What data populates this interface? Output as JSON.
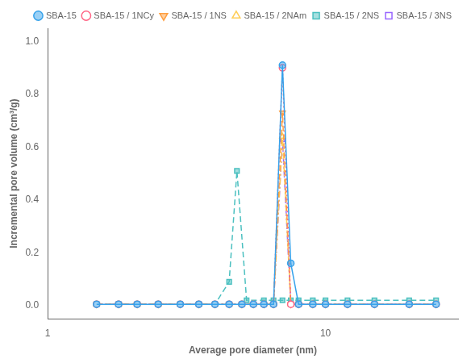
{
  "chart_data": {
    "type": "line",
    "x_label": "Average pore diameter (nm)",
    "y_label": "Incremental pore volume (cm³/g)",
    "log": "x",
    "xlim": [
      1,
      30
    ],
    "xticks": [
      1,
      10
    ],
    "ylim": [
      -0.05,
      1.05
    ],
    "yticks": [
      {
        "value": 0.0,
        "label": "0.0"
      },
      0.2,
      0.4,
      0.6,
      0.8,
      {
        "value": 1.0,
        "label": "1.0"
      }
    ],
    "grid": false,
    "legend": "upper right",
    "series": [
      {
        "name": "SBA-15",
        "line_style": "solid",
        "marker": "circle",
        "x": [
          1.5,
          1.8,
          2.1,
          2.5,
          3.0,
          3.5,
          4.0,
          4.5,
          5.0,
          5.5,
          6.0,
          6.5,
          7.0,
          7.5,
          8.0,
          9.0,
          10.0,
          12.0,
          15.0,
          20.0,
          25.0
        ],
        "values": [
          0.005,
          0.005,
          0.005,
          0.005,
          0.005,
          0.005,
          0.005,
          0.005,
          0.005,
          0.005,
          0.005,
          0.005,
          0.91,
          0.16,
          0.005,
          0.005,
          0.005,
          0.005,
          0.005,
          0.005,
          0.005
        ]
      },
      {
        "name": "SBA-15 / 1NCy",
        "line_style": "dotted",
        "marker": "circle-open",
        "x": [
          1.5,
          1.8,
          2.1,
          2.5,
          3.0,
          3.5,
          4.0,
          4.5,
          5.0,
          5.5,
          6.0,
          6.5,
          7.0,
          7.5,
          8.0,
          9.0,
          10.0,
          12.0,
          15.0,
          20.0,
          25.0
        ],
        "values": [
          0.005,
          0.005,
          0.005,
          0.005,
          0.005,
          0.005,
          0.005,
          0.005,
          0.005,
          0.005,
          0.005,
          0.005,
          0.9,
          0.005,
          0.005,
          0.005,
          0.005,
          0.005,
          0.005,
          0.005,
          0.005
        ]
      },
      {
        "name": "SBA-15 / 1NS",
        "line_style": "dashed",
        "marker": "triangle-down",
        "x": [
          1.5,
          1.8,
          2.1,
          2.5,
          3.0,
          3.5,
          4.0,
          4.5,
          5.0,
          5.5,
          6.0,
          6.5,
          7.0,
          7.5,
          8.0,
          9.0,
          10.0,
          12.0,
          15.0,
          20.0,
          25.0
        ],
        "values": [
          0.005,
          0.005,
          0.005,
          0.005,
          0.005,
          0.005,
          0.005,
          0.005,
          0.005,
          0.005,
          0.005,
          0.005,
          0.73,
          0.005,
          0.005,
          0.005,
          0.005,
          0.005,
          0.005,
          0.005,
          0.005
        ]
      },
      {
        "name": "SBA-15 / 2NAm",
        "line_style": "dashdot",
        "marker": "triangle-open",
        "x": [
          1.5,
          1.8,
          2.1,
          2.5,
          3.0,
          3.5,
          4.0,
          4.5,
          5.0,
          5.5,
          6.0,
          6.5,
          7.0,
          7.5,
          8.0,
          9.0,
          10.0,
          12.0,
          15.0,
          20.0,
          25.0
        ],
        "values": [
          0.005,
          0.005,
          0.005,
          0.005,
          0.005,
          0.005,
          0.005,
          0.005,
          0.005,
          0.005,
          0.005,
          0.005,
          0.64,
          0.005,
          0.005,
          0.005,
          0.005,
          0.005,
          0.005,
          0.005,
          0.005
        ]
      },
      {
        "name": "SBA-15 / 2NS",
        "line_style": "dashed",
        "marker": "square",
        "x": [
          1.5,
          1.8,
          2.1,
          2.5,
          3.0,
          3.5,
          4.0,
          4.5,
          4.8,
          5.2,
          6.0,
          6.5,
          7.0,
          7.5,
          8.0,
          9.0,
          10.0,
          12.0,
          15.0,
          20.0,
          25.0
        ],
        "values": [
          0.005,
          0.005,
          0.005,
          0.005,
          0.005,
          0.005,
          0.005,
          0.09,
          0.51,
          0.02,
          0.02,
          0.02,
          0.02,
          0.02,
          0.02,
          0.02,
          0.02,
          0.02,
          0.02,
          0.02,
          0.02
        ]
      },
      {
        "name": "SBA-15 / 3NS",
        "line_style": "dashdot",
        "marker": "square-open",
        "x": [
          1.5,
          1.8,
          2.1,
          2.5,
          3.0,
          3.5,
          4.0,
          4.5,
          5.0,
          5.5,
          6.0,
          6.5,
          7.0,
          7.5,
          8.0,
          9.0,
          10.0,
          12.0,
          15.0,
          20.0,
          25.0
        ],
        "values": [
          0.005,
          0.005,
          0.005,
          0.005,
          0.005,
          0.005,
          0.005,
          0.005,
          0.005,
          0.005,
          0.005,
          0.005,
          0.63,
          0.005,
          0.005,
          0.005,
          0.005,
          0.005,
          0.005,
          0.005,
          0.005
        ]
      }
    ]
  }
}
